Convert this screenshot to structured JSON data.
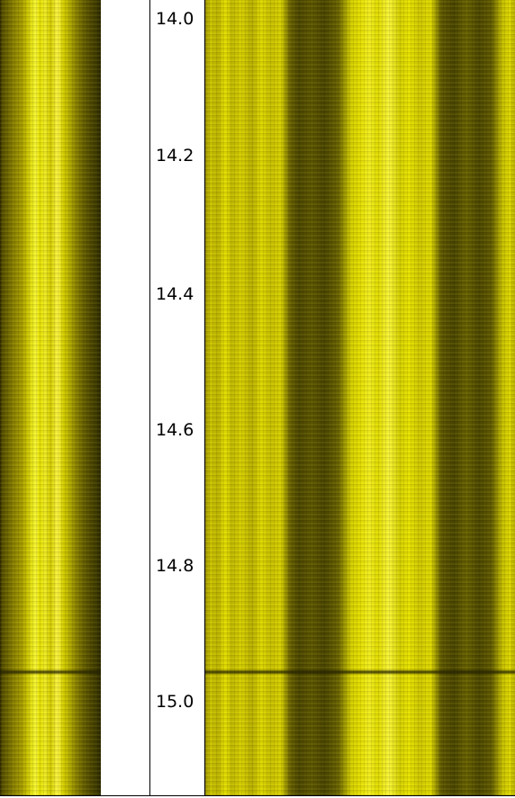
{
  "depth_track": {
    "ticks": [
      {
        "label": "14.0"
      },
      {
        "label": "14.2"
      },
      {
        "label": "14.4"
      },
      {
        "label": "14.6"
      },
      {
        "label": "14.8"
      },
      {
        "label": "15.0"
      }
    ]
  },
  "colors": {
    "image_tint": "#e6e000",
    "image_dark": "#4a4500",
    "track_background": "#ffffff",
    "track_border": "#000000",
    "label_color": "#000000"
  },
  "images": {
    "left_strip": "borehole-image-static",
    "right_strip": "borehole-image-dynamic"
  }
}
